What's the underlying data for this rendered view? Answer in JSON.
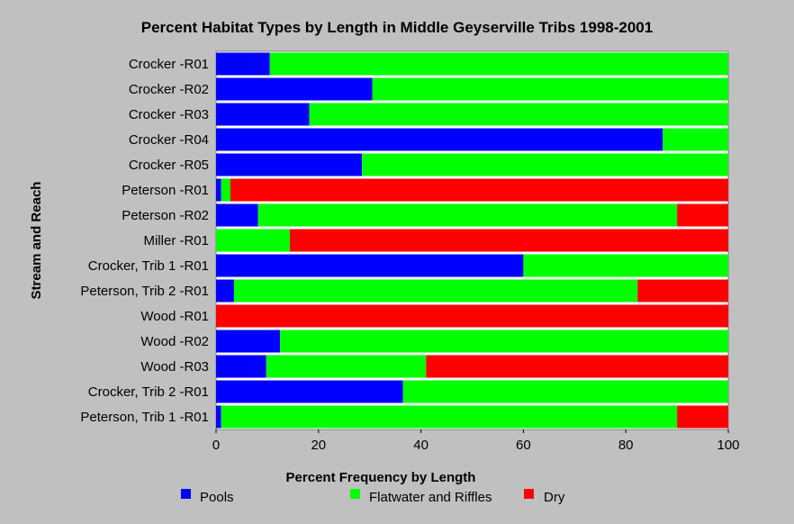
{
  "chart_data": {
    "type": "bar",
    "orientation": "horizontal",
    "stacked": true,
    "title": "Percent Habitat Types by Length in Middle Geyserville Tribs 1998-2001",
    "xlabel": "Percent Frequency by Length",
    "ylabel": "Stream and Reach",
    "xlim": [
      0,
      100
    ],
    "xticks": [
      0,
      20,
      40,
      60,
      80,
      100
    ],
    "grid": false,
    "legend_position": "bottom",
    "categories": [
      "Crocker -R01",
      "Crocker -R02",
      "Crocker -R03",
      "Crocker -R04",
      "Crocker -R05",
      "Peterson -R01",
      "Peterson -R02",
      "Miller -R01",
      "Crocker, Trib 1 -R01",
      "Peterson, Trib 2 -R01",
      "Wood -R01",
      "Wood -R02",
      "Wood -R03",
      "Crocker, Trib 2 -R01",
      "Peterson, Trib 1 -R01"
    ],
    "series": [
      {
        "name": "Pools",
        "color": "#0000ff",
        "values": [
          10.5,
          30.5,
          18.2,
          87.2,
          28.5,
          1.0,
          8.2,
          0.0,
          60.0,
          3.5,
          0.0,
          12.5,
          9.8,
          36.5,
          1.0
        ]
      },
      {
        "name": "Flatwater and Riffles",
        "color": "#00ff00",
        "values": [
          89.5,
          69.5,
          81.8,
          12.8,
          71.5,
          1.8,
          81.8,
          14.4,
          40.0,
          78.8,
          0.0,
          87.5,
          31.2,
          63.5,
          89.0
        ]
      },
      {
        "name": "Dry",
        "color": "#ff0000",
        "values": [
          0.0,
          0.0,
          0.0,
          0.0,
          0.0,
          97.2,
          10.0,
          85.6,
          0.0,
          17.7,
          100.0,
          0.0,
          59.0,
          0.0,
          10.0
        ]
      }
    ]
  }
}
